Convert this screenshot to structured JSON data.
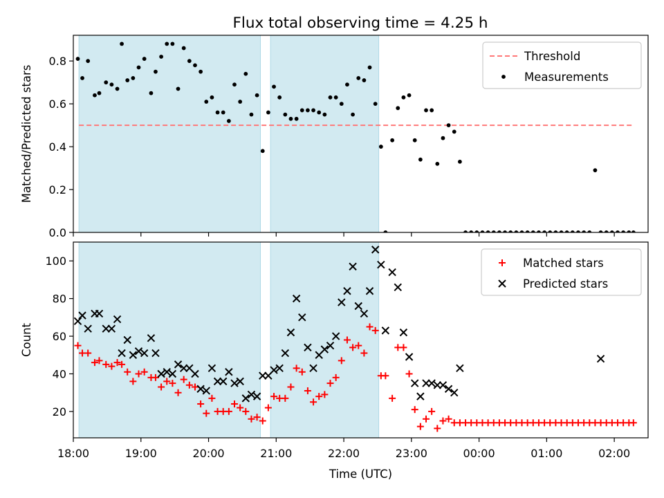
{
  "figure_title": "Flux total observing time = 4.25 h",
  "colors": {
    "threshold": "#ff7777",
    "measurements": "#000000",
    "matched": "#ff0000",
    "predicted": "#000000",
    "shade": "#add8e6"
  },
  "chart_data": [
    {
      "type": "scatter",
      "ylabel": "Matched/Predicted stars",
      "xlabel": "",
      "xlim": [
        18.0,
        2.5
      ],
      "ylim": [
        0.0,
        0.92
      ],
      "yticks": [
        0.0,
        0.2,
        0.4,
        0.6,
        0.8
      ],
      "yticklabels": [
        "0.0",
        "0.2",
        "0.4",
        "0.6",
        "0.8"
      ],
      "legend_position": "top-right",
      "shaded_intervals": [
        [
          "18:05",
          "20:46"
        ],
        [
          "20:55",
          "22:31"
        ]
      ],
      "series": [
        {
          "name": "Threshold",
          "style": "dashed-line",
          "x": [
            "18:05",
            "02:17"
          ],
          "y": [
            0.5,
            0.5
          ]
        },
        {
          "name": "Measurements",
          "style": "dots",
          "x": [
            "18:04",
            "18:08",
            "18:13",
            "18:19",
            "18:23",
            "18:29",
            "18:34",
            "18:39",
            "18:43",
            "18:48",
            "18:53",
            "18:58",
            "19:03",
            "19:09",
            "19:13",
            "19:18",
            "19:23",
            "19:28",
            "19:33",
            "19:38",
            "19:43",
            "19:48",
            "19:53",
            "19:58",
            "20:03",
            "20:08",
            "20:13",
            "20:18",
            "20:23",
            "20:28",
            "20:33",
            "20:38",
            "20:43",
            "20:48",
            "20:53",
            "20:58",
            "21:03",
            "21:08",
            "21:13",
            "21:18",
            "21:23",
            "21:28",
            "21:33",
            "21:38",
            "21:43",
            "21:48",
            "21:53",
            "21:58",
            "22:03",
            "22:08",
            "22:13",
            "22:18",
            "22:23",
            "22:28",
            "22:33",
            "22:37",
            "22:43",
            "22:48",
            "22:53",
            "22:58",
            "23:03",
            "23:08",
            "23:13",
            "23:18",
            "23:23",
            "23:28",
            "23:33",
            "23:38",
            "23:43",
            "23:48",
            "23:53",
            "23:58",
            "00:03",
            "00:08",
            "00:13",
            "00:18",
            "00:23",
            "00:28",
            "00:33",
            "00:38",
            "00:43",
            "00:48",
            "00:53",
            "00:58",
            "01:03",
            "01:08",
            "01:13",
            "01:18",
            "01:23",
            "01:28",
            "01:33",
            "01:38",
            "01:43",
            "01:48",
            "01:53",
            "01:58",
            "02:03",
            "02:08",
            "02:13",
            "02:17"
          ],
          "y": [
            0.81,
            0.72,
            0.8,
            0.64,
            0.65,
            0.7,
            0.69,
            0.67,
            0.88,
            0.71,
            0.72,
            0.77,
            0.81,
            0.65,
            0.75,
            0.82,
            0.88,
            0.88,
            0.67,
            0.86,
            0.8,
            0.78,
            0.75,
            0.61,
            0.63,
            0.56,
            0.56,
            0.52,
            0.69,
            0.61,
            0.74,
            0.55,
            0.64,
            0.38,
            0.56,
            0.68,
            0.63,
            0.55,
            0.53,
            0.53,
            0.57,
            0.57,
            0.57,
            0.56,
            0.55,
            0.63,
            0.63,
            0.6,
            0.69,
            0.55,
            0.72,
            0.71,
            0.77,
            0.6,
            0.4,
            0.0,
            0.43,
            0.58,
            0.63,
            0.64,
            0.43,
            0.34,
            0.57,
            0.57,
            0.32,
            0.44,
            0.5,
            0.47,
            0.33,
            0.0,
            0.0,
            0.0,
            0.0,
            0.0,
            0.0,
            0.0,
            0.0,
            0.0,
            0.0,
            0.0,
            0.0,
            0.0,
            0.0,
            0.0,
            0.0,
            0.0,
            0.0,
            0.0,
            0.0,
            0.0,
            0.0,
            0.0,
            0.29,
            0.0,
            0.0,
            0.0,
            0.0,
            0.0,
            0.0,
            0.0
          ]
        }
      ]
    },
    {
      "type": "scatter",
      "ylabel": "Count",
      "xlabel": "Time (UTC)",
      "xlim": [
        18.0,
        2.5
      ],
      "ylim": [
        6.0,
        110.0
      ],
      "yticks": [
        20,
        40,
        60,
        80,
        100
      ],
      "yticklabels": [
        "20",
        "40",
        "60",
        "80",
        "100"
      ],
      "xticks": [
        "18:00",
        "19:00",
        "20:00",
        "21:00",
        "22:00",
        "23:00",
        "00:00",
        "01:00",
        "02:00"
      ],
      "legend_position": "top-right",
      "shaded_intervals": [
        [
          "18:05",
          "20:46"
        ],
        [
          "20:55",
          "22:31"
        ]
      ],
      "series": [
        {
          "name": "Matched stars",
          "style": "plus",
          "x": [
            "18:04",
            "18:08",
            "18:13",
            "18:19",
            "18:23",
            "18:29",
            "18:34",
            "18:39",
            "18:43",
            "18:48",
            "18:53",
            "18:58",
            "19:03",
            "19:09",
            "19:13",
            "19:18",
            "19:23",
            "19:28",
            "19:33",
            "19:38",
            "19:43",
            "19:48",
            "19:53",
            "19:58",
            "20:03",
            "20:08",
            "20:13",
            "20:18",
            "20:23",
            "20:28",
            "20:33",
            "20:38",
            "20:43",
            "20:48",
            "20:53",
            "20:58",
            "21:03",
            "21:08",
            "21:13",
            "21:18",
            "21:23",
            "21:28",
            "21:33",
            "21:38",
            "21:43",
            "21:48",
            "21:53",
            "21:58",
            "22:03",
            "22:08",
            "22:13",
            "22:18",
            "22:23",
            "22:28",
            "22:33",
            "22:37",
            "22:43",
            "22:48",
            "22:53",
            "22:58",
            "23:03",
            "23:08",
            "23:13",
            "23:18",
            "23:23",
            "23:28",
            "23:33",
            "23:38",
            "23:43",
            "23:48",
            "23:53",
            "23:58",
            "00:03",
            "00:08",
            "00:13",
            "00:18",
            "00:23",
            "00:28",
            "00:33",
            "00:38",
            "00:43",
            "00:48",
            "00:53",
            "00:58",
            "01:03",
            "01:08",
            "01:13",
            "01:18",
            "01:23",
            "01:28",
            "01:33",
            "01:38",
            "01:43",
            "01:48",
            "01:53",
            "01:58",
            "02:03",
            "02:08",
            "02:13",
            "02:17"
          ],
          "y": [
            55,
            51,
            51,
            46,
            47,
            45,
            44,
            46,
            45,
            41,
            36,
            40,
            41,
            38,
            38,
            33,
            36,
            35,
            30,
            37,
            34,
            33,
            24,
            19,
            27,
            20,
            20,
            20,
            24,
            22,
            20,
            16,
            17,
            15,
            22,
            28,
            27,
            27,
            33,
            43,
            41,
            31,
            25,
            28,
            29,
            35,
            38,
            47,
            58,
            54,
            55,
            51,
            65,
            63,
            39,
            39,
            27,
            54,
            54,
            40,
            21,
            12,
            16,
            20,
            11,
            15,
            16,
            14,
            14,
            14,
            14,
            14,
            14,
            14,
            14,
            14,
            14,
            14,
            14,
            14,
            14,
            14,
            14,
            14,
            14,
            14,
            14,
            14,
            14,
            14,
            14,
            14,
            14,
            14,
            14,
            14,
            14,
            14,
            14,
            14
          ]
        },
        {
          "name": "Predicted stars",
          "style": "cross",
          "x": [
            "18:04",
            "18:08",
            "18:13",
            "18:19",
            "18:23",
            "18:29",
            "18:34",
            "18:39",
            "18:43",
            "18:48",
            "18:53",
            "18:58",
            "19:03",
            "19:09",
            "19:13",
            "19:18",
            "19:23",
            "19:28",
            "19:33",
            "19:38",
            "19:43",
            "19:48",
            "19:53",
            "19:58",
            "20:03",
            "20:08",
            "20:13",
            "20:18",
            "20:23",
            "20:28",
            "20:33",
            "20:38",
            "20:43",
            "20:48",
            "20:53",
            "20:58",
            "21:03",
            "21:08",
            "21:13",
            "21:18",
            "21:23",
            "21:28",
            "21:33",
            "21:38",
            "21:43",
            "21:48",
            "21:53",
            "21:58",
            "22:03",
            "22:08",
            "22:13",
            "22:18",
            "22:23",
            "22:28",
            "22:33",
            "22:37",
            "22:43",
            "22:48",
            "22:53",
            "22:58",
            "23:03",
            "23:08",
            "23:13",
            "23:18",
            "23:23",
            "23:28",
            "23:33",
            "23:38",
            "23:43",
            "01:48"
          ],
          "y": [
            68,
            71,
            64,
            72,
            72,
            64,
            64,
            69,
            51,
            58,
            50,
            52,
            51,
            59,
            51,
            40,
            41,
            40,
            45,
            43,
            43,
            40,
            32,
            31,
            43,
            36,
            36,
            41,
            35,
            36,
            27,
            29,
            28,
            39,
            39,
            42,
            43,
            51,
            62,
            80,
            70,
            54,
            43,
            50,
            53,
            55,
            60,
            78,
            84,
            97,
            76,
            72,
            84,
            106,
            98,
            63,
            94,
            86,
            62,
            49,
            35,
            28,
            35,
            35,
            34,
            34,
            32,
            30,
            43,
            48
          ]
        }
      ]
    }
  ]
}
